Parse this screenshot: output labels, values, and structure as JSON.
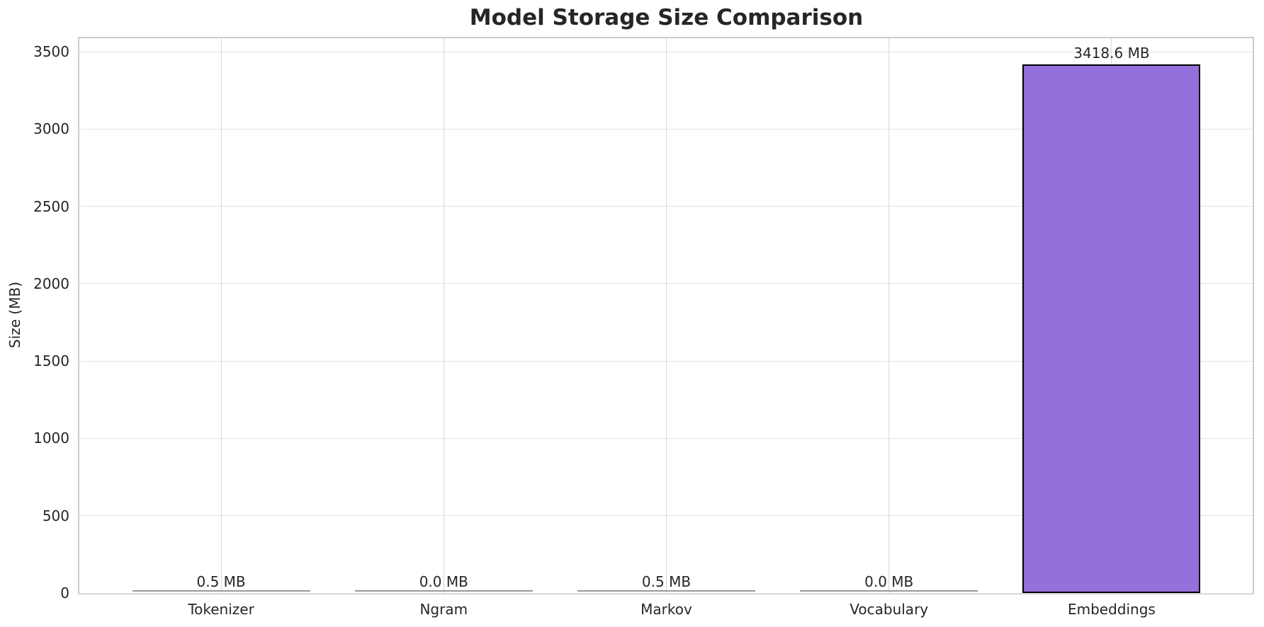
{
  "chart_data": {
    "type": "bar",
    "title": "Model Storage Size Comparison",
    "ylabel": "Size (MB)",
    "xlabel": "",
    "categories": [
      "Tokenizer",
      "Ngram",
      "Markov",
      "Vocabulary",
      "Embeddings"
    ],
    "values": [
      0.5,
      0.0,
      0.5,
      0.0,
      3418.6
    ],
    "bar_labels": [
      "0.5 MB",
      "0.0 MB",
      "0.5 MB",
      "0.0 MB",
      "3418.6 MB"
    ],
    "yticks": [
      0,
      500,
      1000,
      1500,
      2000,
      2500,
      3000,
      3500
    ],
    "ylim": [
      0,
      3595
    ],
    "grid": true,
    "legend": false,
    "colors": {
      "bar_fill": "#9370DB",
      "bar_edge": "#000000",
      "zero_bar_line": "#999999",
      "grid_vertical": "#d6d6d6",
      "grid_horizontal": "#e3e3e3",
      "spine": "#cccccc",
      "text": "#262626",
      "background": "#ffffff"
    }
  }
}
